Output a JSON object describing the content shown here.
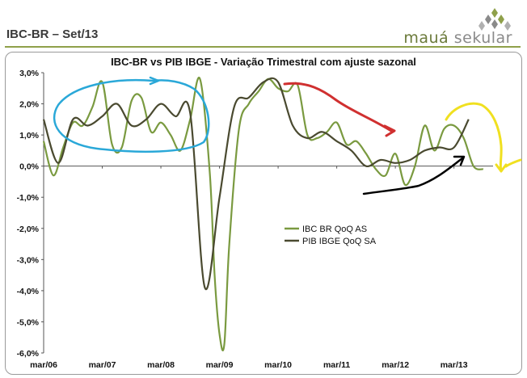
{
  "header": {
    "title": "IBC-BR – Set/13",
    "brand_word1": "mauá",
    "brand_word2": "sekular"
  },
  "colors": {
    "accent": "#8fa04a",
    "ibc_series": "#7a9a40",
    "pib_series": "#4a4a30",
    "annotation_blue": "#2aa8d8",
    "annotation_red": "#d03030",
    "annotation_yellow": "#f0e020",
    "annotation_black": "#000000"
  },
  "chart_data": {
    "type": "line",
    "title": "IBC-BR vs PIB IBGE - Variação Trimestral com ajuste sazonal",
    "xlabel": "",
    "ylabel": "",
    "x_tick_labels": [
      "mar/06",
      "mar/07",
      "mar/08",
      "mar/09",
      "mar/10",
      "mar/11",
      "mar/12",
      "mar/13"
    ],
    "y_tick_labels": [
      "3,0%",
      "2,0%",
      "1,0%",
      "0,0%",
      "-1,0%",
      "-2,0%",
      "-3,0%",
      "-4,0%",
      "-5,0%",
      "-6,0%"
    ],
    "ylim": [
      -6,
      3
    ],
    "x_range_months": [
      "2006-03",
      "2013-11"
    ],
    "grid": false,
    "legend_position": "center-right",
    "series": [
      {
        "name": "IBC BR QoQ AS",
        "points": [
          [
            "2006-03",
            0.8
          ],
          [
            "2006-05",
            -0.3
          ],
          [
            "2006-07",
            0.6
          ],
          [
            "2006-09",
            1.4
          ],
          [
            "2006-11",
            1.3
          ],
          [
            "2007-01",
            1.9
          ],
          [
            "2007-03",
            2.7
          ],
          [
            "2007-05",
            0.7
          ],
          [
            "2007-07",
            0.6
          ],
          [
            "2007-09",
            2.1
          ],
          [
            "2007-11",
            2.2
          ],
          [
            "2008-01",
            1.1
          ],
          [
            "2008-03",
            1.4
          ],
          [
            "2008-05",
            1.0
          ],
          [
            "2008-07",
            0.5
          ],
          [
            "2008-09",
            1.5
          ],
          [
            "2008-11",
            2.8
          ],
          [
            "2009-01",
            -0.2
          ],
          [
            "2009-02",
            -3.5
          ],
          [
            "2009-03",
            -5.4
          ],
          [
            "2009-04",
            -5.7
          ],
          [
            "2009-05",
            -2.5
          ],
          [
            "2009-07",
            1.2
          ],
          [
            "2009-09",
            2.0
          ],
          [
            "2009-11",
            2.4
          ],
          [
            "2010-01",
            2.8
          ],
          [
            "2010-03",
            2.5
          ],
          [
            "2010-05",
            2.4
          ],
          [
            "2010-07",
            2.6
          ],
          [
            "2010-09",
            1.0
          ],
          [
            "2010-11",
            0.9
          ],
          [
            "2011-01",
            1.1
          ],
          [
            "2011-03",
            1.4
          ],
          [
            "2011-05",
            0.7
          ],
          [
            "2011-07",
            0.8
          ],
          [
            "2011-09",
            0.4
          ],
          [
            "2011-11",
            -0.1
          ],
          [
            "2012-01",
            -0.3
          ],
          [
            "2012-03",
            0.4
          ],
          [
            "2012-05",
            -0.6
          ],
          [
            "2012-07",
            0.0
          ],
          [
            "2012-09",
            1.3
          ],
          [
            "2012-11",
            0.5
          ],
          [
            "2013-01",
            1.2
          ],
          [
            "2013-03",
            1.3
          ],
          [
            "2013-05",
            0.9
          ],
          [
            "2013-07",
            0.0
          ],
          [
            "2013-09",
            -0.1
          ]
        ]
      },
      {
        "name": "PIB IBGE QoQ SA",
        "points": [
          [
            "2006-03",
            1.5
          ],
          [
            "2006-06",
            0.1
          ],
          [
            "2006-09",
            1.5
          ],
          [
            "2006-12",
            1.3
          ],
          [
            "2007-03",
            1.6
          ],
          [
            "2007-06",
            2.0
          ],
          [
            "2007-09",
            1.3
          ],
          [
            "2007-12",
            1.5
          ],
          [
            "2008-03",
            2.0
          ],
          [
            "2008-06",
            1.6
          ],
          [
            "2008-09",
            1.7
          ],
          [
            "2008-12",
            -3.9
          ],
          [
            "2009-03",
            -1.0
          ],
          [
            "2009-06",
            1.9
          ],
          [
            "2009-09",
            2.2
          ],
          [
            "2009-12",
            2.7
          ],
          [
            "2010-03",
            2.7
          ],
          [
            "2010-06",
            1.3
          ],
          [
            "2010-09",
            0.9
          ],
          [
            "2010-12",
            1.1
          ],
          [
            "2011-03",
            0.8
          ],
          [
            "2011-06",
            0.5
          ],
          [
            "2011-09",
            0.0
          ],
          [
            "2011-12",
            0.2
          ],
          [
            "2012-03",
            0.1
          ],
          [
            "2012-06",
            0.2
          ],
          [
            "2012-09",
            0.5
          ],
          [
            "2012-12",
            0.6
          ],
          [
            "2013-03",
            0.6
          ],
          [
            "2013-06",
            1.5
          ]
        ]
      }
    ]
  }
}
